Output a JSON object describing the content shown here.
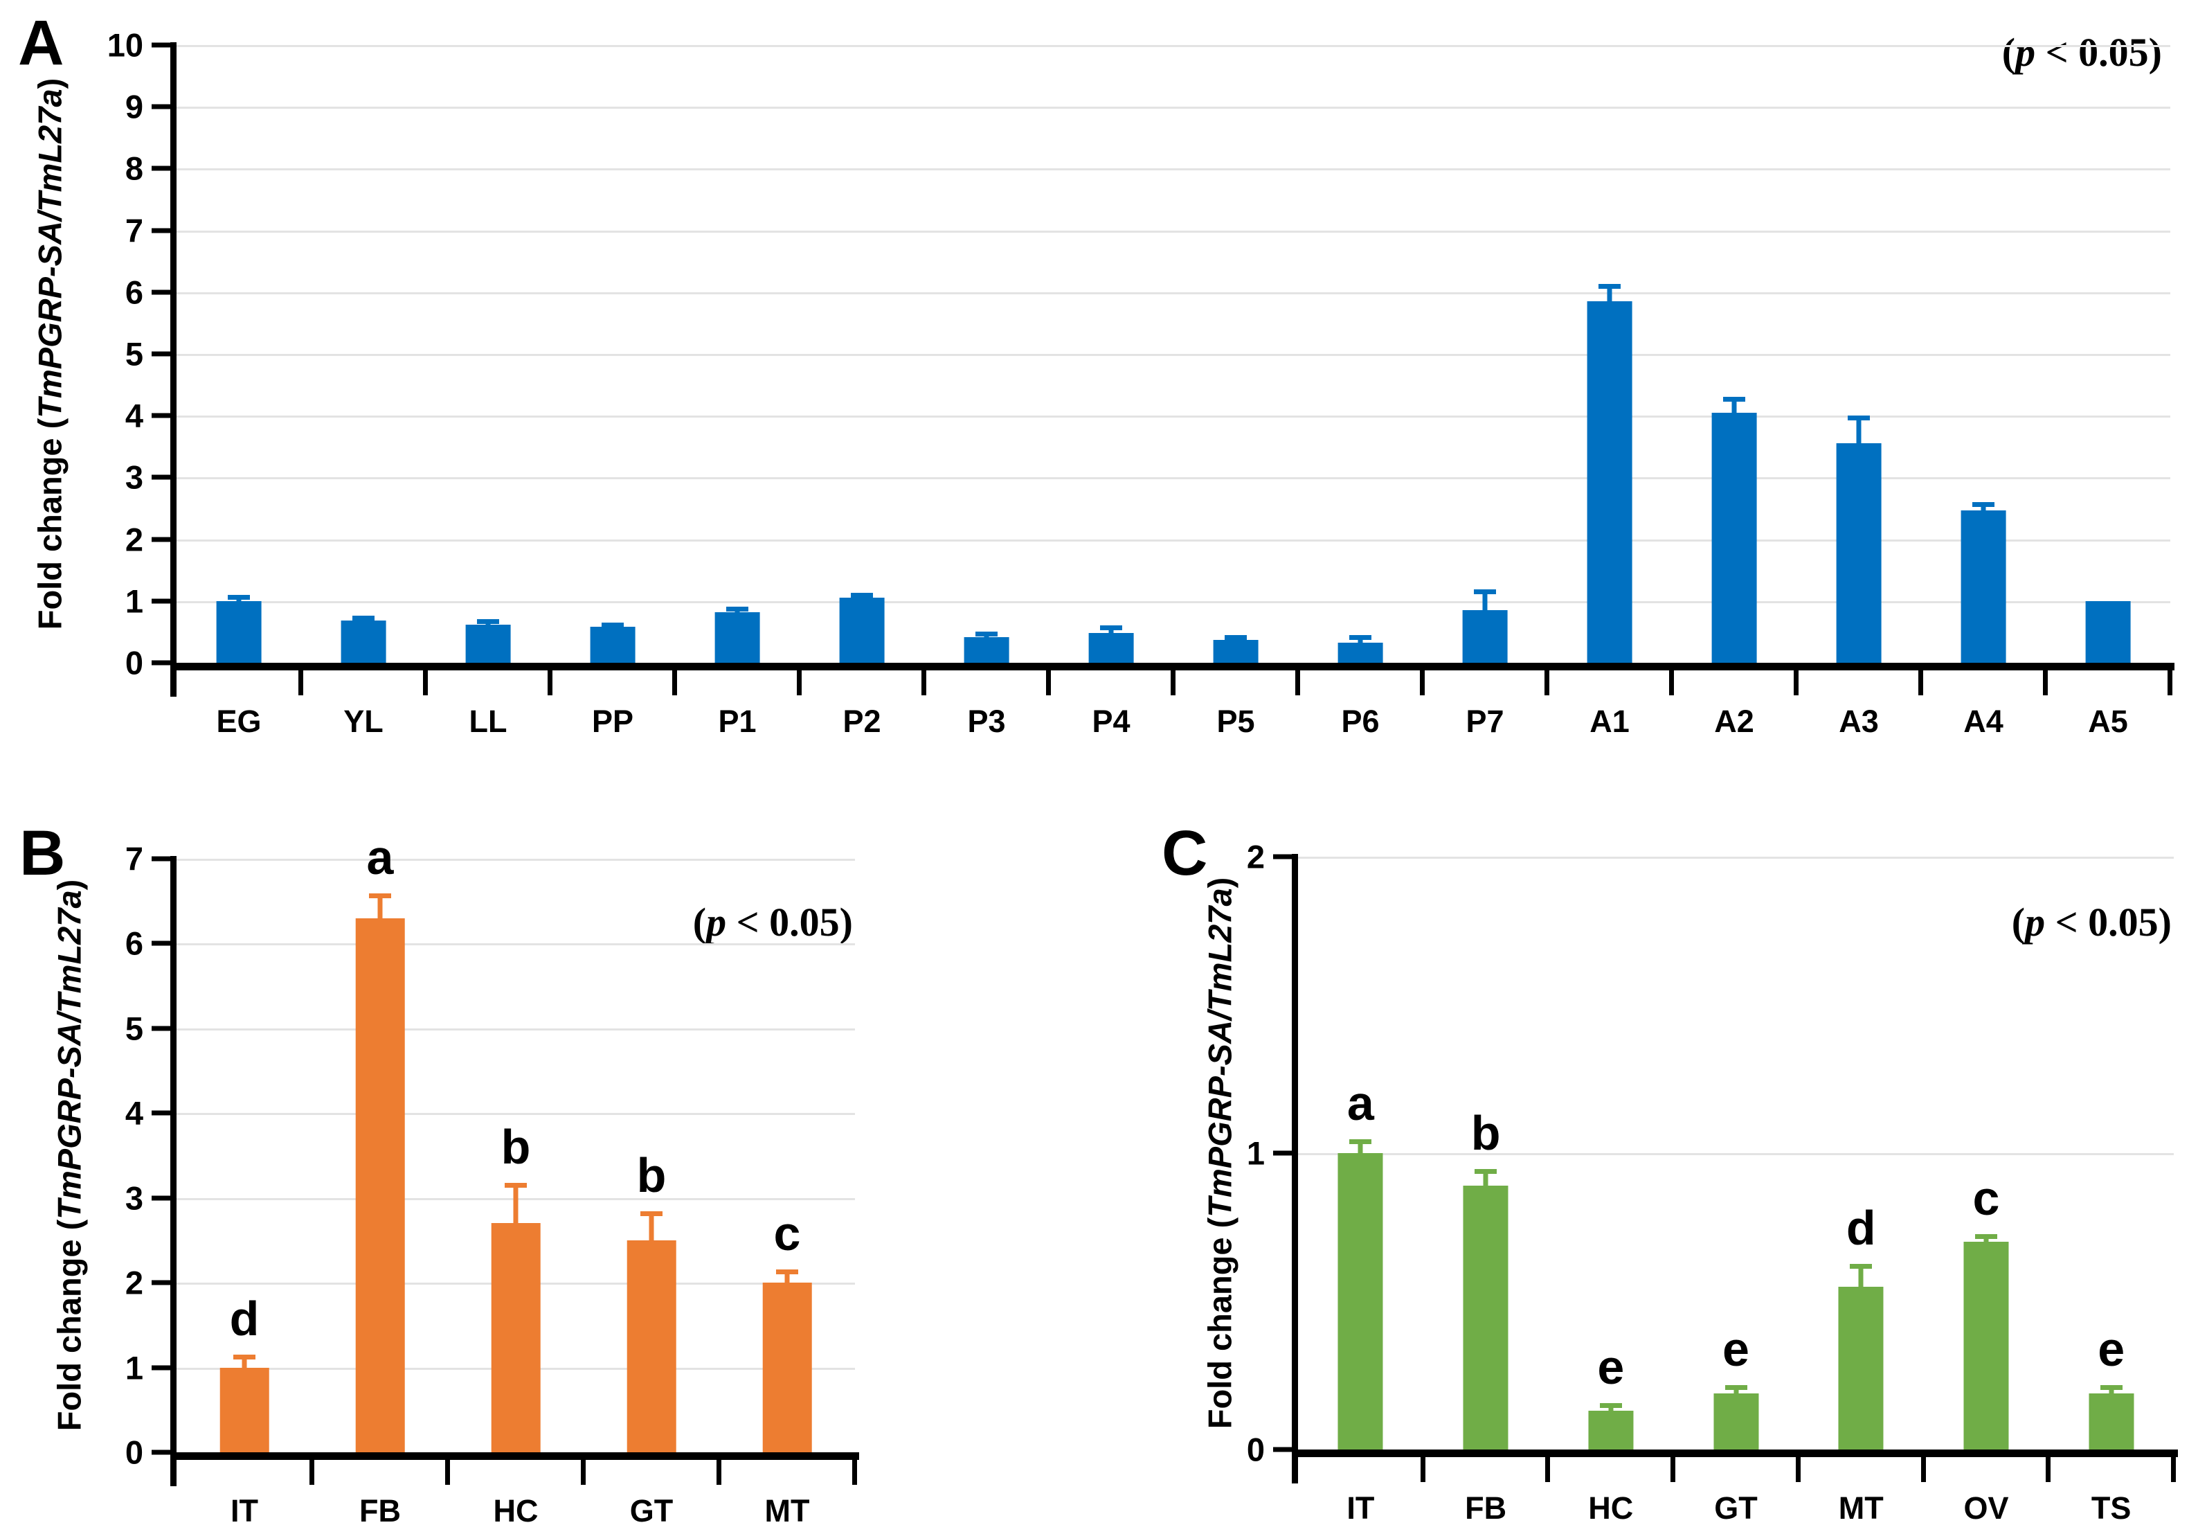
{
  "figure_annotation": {
    "open_paren": "(",
    "p_symbol": "p",
    "rest": " < 0.05)"
  },
  "y_axis_title": {
    "prefix": "Fold change (",
    "gene": "TmPGRP-SA/TmL27a",
    "suffix": ")"
  },
  "chart_data": [
    {
      "type": "bar",
      "panel_label": "A",
      "title": "",
      "xlabel": "",
      "ylabel": "Fold change (TmPGRP-SA/TmL27a)",
      "annotation": "(p < 0.05)",
      "bar_color": "#0070C0",
      "ylim": [
        0,
        10
      ],
      "yticks": [
        0,
        1,
        2,
        3,
        4,
        5,
        6,
        7,
        8,
        9,
        10
      ],
      "gridlines": [
        1,
        2,
        3,
        4,
        5,
        6,
        7,
        8,
        9,
        10
      ],
      "grid_on": true,
      "legend": "none",
      "categories": [
        "EG",
        "YL",
        "LL",
        "PP",
        "P1",
        "P2",
        "P3",
        "P4",
        "P5",
        "P6",
        "P7",
        "A1",
        "A2",
        "A3",
        "A4",
        "A5"
      ],
      "values": [
        1.0,
        0.68,
        0.62,
        0.58,
        0.82,
        1.05,
        0.42,
        0.48,
        0.37,
        0.32,
        0.85,
        5.85,
        4.05,
        3.55,
        2.47,
        1.0
      ],
      "errors": [
        0.06,
        0.05,
        0.05,
        0.04,
        0.06,
        0.05,
        0.05,
        0.09,
        0.04,
        0.09,
        0.3,
        0.25,
        0.22,
        0.42,
        0.1,
        0
      ],
      "letters": [
        "",
        "",
        "",
        "",
        "",
        "",
        "",
        "",
        "",
        "",
        "",
        "",
        "",
        "",
        "",
        ""
      ]
    },
    {
      "type": "bar",
      "panel_label": "B",
      "title": "",
      "xlabel": "",
      "ylabel": "Fold change (TmPGRP-SA/TmL27a)",
      "annotation": "(p < 0.05)",
      "bar_color": "#ED7D31",
      "ylim": [
        0,
        7
      ],
      "yticks": [
        0,
        1,
        2,
        3,
        4,
        5,
        6,
        7
      ],
      "gridlines": [
        1,
        2,
        3,
        4,
        5,
        6,
        7
      ],
      "grid_on": true,
      "legend": "none",
      "categories": [
        "IT",
        "FB",
        "HC",
        "GT",
        "MT"
      ],
      "values": [
        1.0,
        6.3,
        2.7,
        2.5,
        2.0
      ],
      "errors": [
        0.13,
        0.27,
        0.45,
        0.32,
        0.13
      ],
      "letters": [
        "d",
        "a",
        "b",
        "b",
        "c"
      ]
    },
    {
      "type": "bar",
      "panel_label": "C",
      "title": "",
      "xlabel": "",
      "ylabel": "Fold change (TmPGRP-SA/TmL27a)",
      "annotation": "(p < 0.05)",
      "bar_color": "#70AD47",
      "ylim": [
        0,
        2
      ],
      "yticks": [
        0,
        1,
        2
      ],
      "gridlines": [
        1,
        2
      ],
      "grid_on": true,
      "legend": "none",
      "categories": [
        "IT",
        "FB",
        "HC",
        "GT",
        "MT",
        "OV",
        "TS"
      ],
      "values": [
        1.0,
        0.89,
        0.13,
        0.19,
        0.55,
        0.7,
        0.19
      ],
      "errors": [
        0.04,
        0.05,
        0.02,
        0.02,
        0.07,
        0.02,
        0.02
      ],
      "letters": [
        "a",
        "b",
        "e",
        "e",
        "d",
        "c",
        "e"
      ]
    }
  ]
}
